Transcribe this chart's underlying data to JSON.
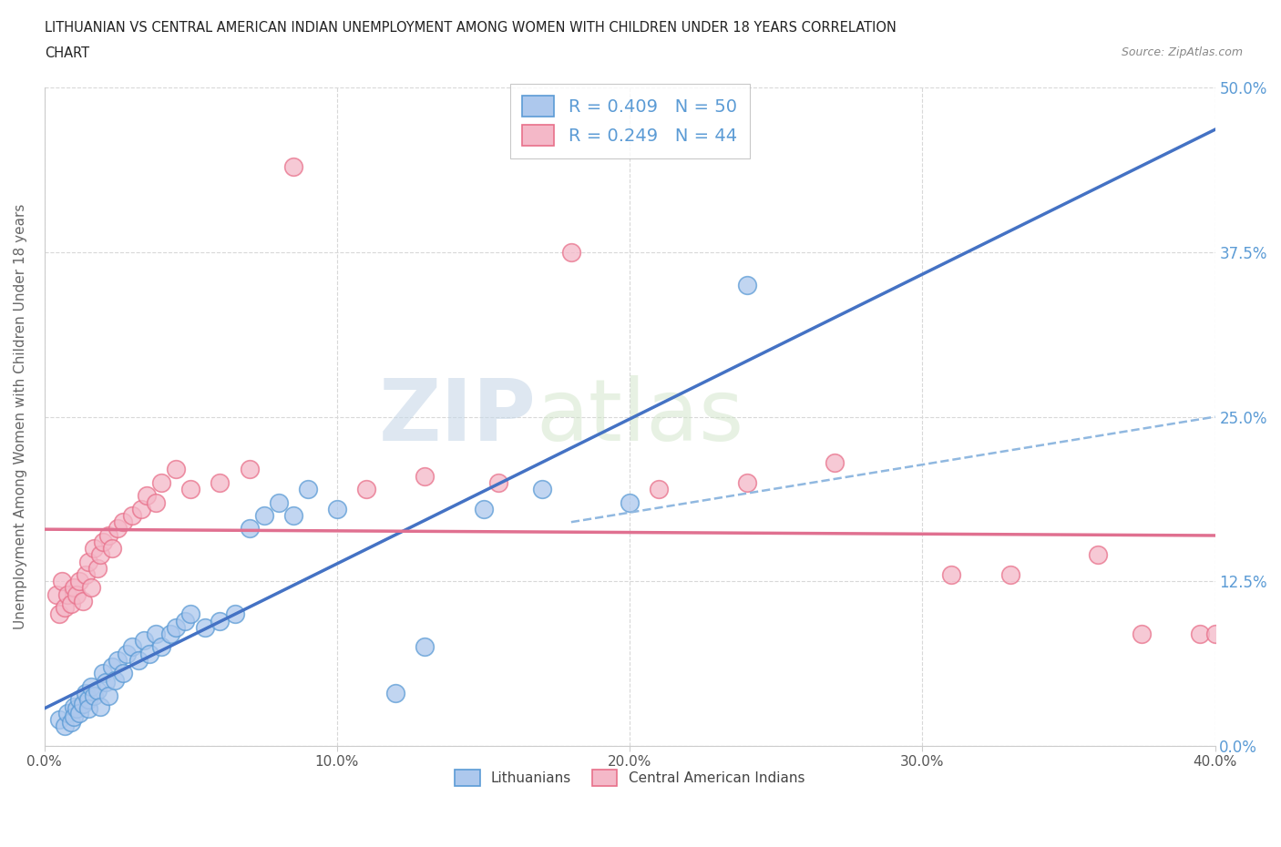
{
  "title_line1": "LITHUANIAN VS CENTRAL AMERICAN INDIAN UNEMPLOYMENT AMONG WOMEN WITH CHILDREN UNDER 18 YEARS CORRELATION",
  "title_line2": "CHART",
  "source": "Source: ZipAtlas.com",
  "ylabel": "Unemployment Among Women with Children Under 18 years",
  "xlabel": "",
  "legend_label1": "Lithuanians",
  "legend_label2": "Central American Indians",
  "R1": 0.409,
  "N1": 50,
  "R2": 0.249,
  "N2": 44,
  "color_blue": "#adc8ed",
  "color_blue_edge": "#5b9bd5",
  "color_pink": "#f4b8c8",
  "color_pink_edge": "#e8708a",
  "color_blue_line": "#4472c4",
  "color_pink_line": "#e07090",
  "color_blue_dash": "#90b8e0",
  "background": "#ffffff",
  "grid_color": "#d8d8d8",
  "watermark_zip": "ZIP",
  "watermark_atlas": "atlas",
  "xlim": [
    0.0,
    0.4
  ],
  "ylim": [
    0.0,
    0.5
  ],
  "xticks": [
    0.0,
    0.1,
    0.2,
    0.3,
    0.4
  ],
  "yticks": [
    0.0,
    0.125,
    0.25,
    0.375,
    0.5
  ],
  "xtick_labels": [
    "0.0%",
    "10.0%",
    "20.0%",
    "30.0%",
    "40.0%"
  ],
  "ytick_labels_right": [
    "0.0%",
    "12.5%",
    "25.0%",
    "37.5%",
    "50.0%"
  ],
  "blue_scatter_x": [
    0.005,
    0.007,
    0.008,
    0.009,
    0.01,
    0.01,
    0.011,
    0.012,
    0.012,
    0.013,
    0.014,
    0.015,
    0.015,
    0.016,
    0.017,
    0.018,
    0.019,
    0.02,
    0.021,
    0.022,
    0.023,
    0.024,
    0.025,
    0.027,
    0.028,
    0.03,
    0.032,
    0.034,
    0.036,
    0.038,
    0.04,
    0.043,
    0.045,
    0.048,
    0.05,
    0.055,
    0.06,
    0.065,
    0.07,
    0.075,
    0.08,
    0.085,
    0.09,
    0.1,
    0.12,
    0.13,
    0.15,
    0.17,
    0.2,
    0.24
  ],
  "blue_scatter_y": [
    0.02,
    0.015,
    0.025,
    0.018,
    0.03,
    0.022,
    0.028,
    0.035,
    0.025,
    0.032,
    0.04,
    0.035,
    0.028,
    0.045,
    0.038,
    0.042,
    0.03,
    0.055,
    0.048,
    0.038,
    0.06,
    0.05,
    0.065,
    0.055,
    0.07,
    0.075,
    0.065,
    0.08,
    0.07,
    0.085,
    0.075,
    0.085,
    0.09,
    0.095,
    0.1,
    0.09,
    0.095,
    0.1,
    0.165,
    0.175,
    0.185,
    0.175,
    0.195,
    0.18,
    0.04,
    0.075,
    0.18,
    0.195,
    0.185,
    0.35
  ],
  "pink_scatter_x": [
    0.004,
    0.005,
    0.006,
    0.007,
    0.008,
    0.009,
    0.01,
    0.011,
    0.012,
    0.013,
    0.014,
    0.015,
    0.016,
    0.017,
    0.018,
    0.019,
    0.02,
    0.022,
    0.023,
    0.025,
    0.027,
    0.03,
    0.033,
    0.035,
    0.038,
    0.04,
    0.045,
    0.05,
    0.06,
    0.07,
    0.085,
    0.11,
    0.13,
    0.155,
    0.18,
    0.21,
    0.24,
    0.27,
    0.31,
    0.33,
    0.36,
    0.375,
    0.395,
    0.4
  ],
  "pink_scatter_y": [
    0.115,
    0.1,
    0.125,
    0.105,
    0.115,
    0.108,
    0.12,
    0.115,
    0.125,
    0.11,
    0.13,
    0.14,
    0.12,
    0.15,
    0.135,
    0.145,
    0.155,
    0.16,
    0.15,
    0.165,
    0.17,
    0.175,
    0.18,
    0.19,
    0.185,
    0.2,
    0.21,
    0.195,
    0.2,
    0.21,
    0.44,
    0.195,
    0.205,
    0.2,
    0.375,
    0.195,
    0.2,
    0.215,
    0.13,
    0.13,
    0.145,
    0.085,
    0.085,
    0.085
  ]
}
